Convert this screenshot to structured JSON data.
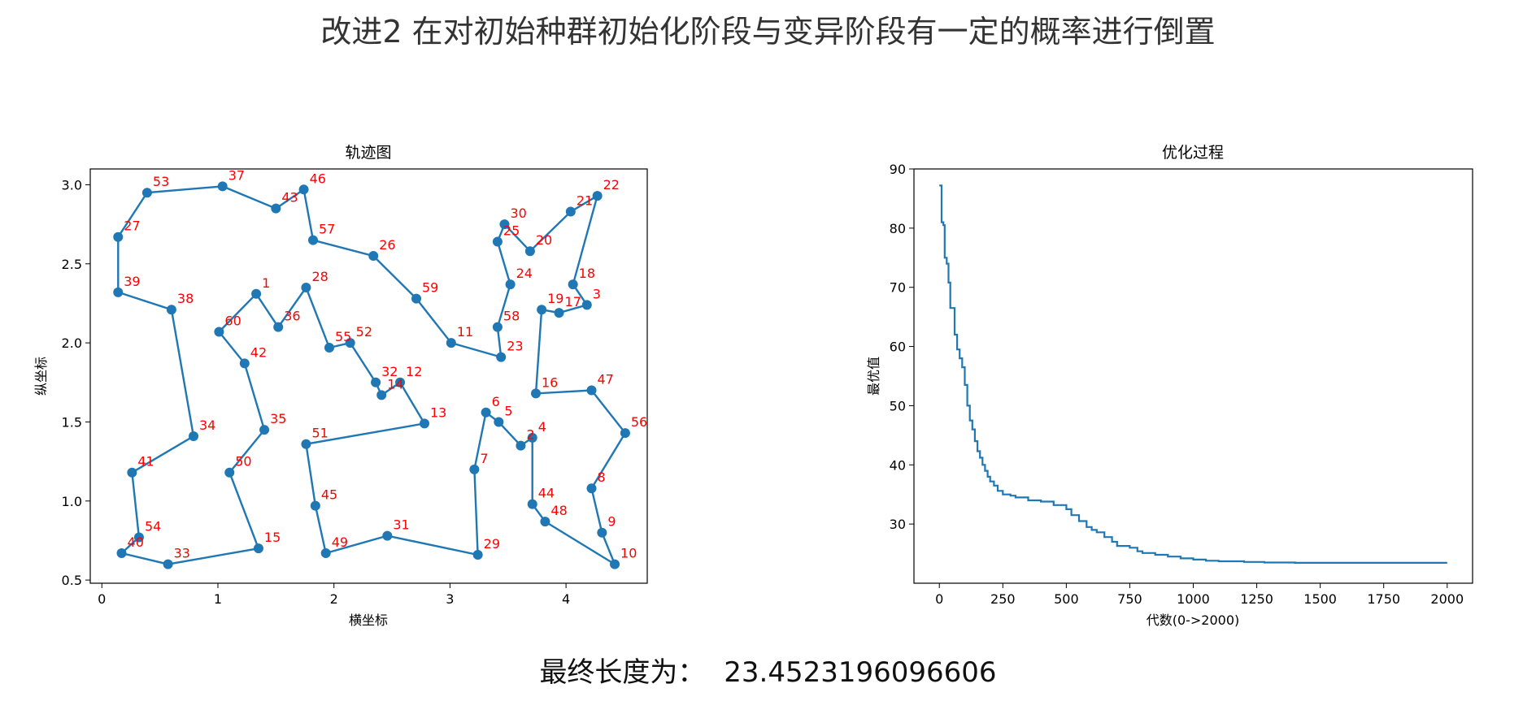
{
  "page": {
    "title": "改进2 在对初始种群初始化阶段与变异阶段有一定的概率进行倒置",
    "final_label": "最终长度为：",
    "final_value": "23.4523196096606"
  },
  "colors": {
    "line": "#1f77b4",
    "label": "#ff0000",
    "axes": "#000000"
  },
  "chart_data": [
    {
      "type": "line",
      "title": "轨迹图",
      "xlabel": "横坐标",
      "ylabel": "纵坐标",
      "xlim": [
        -0.1,
        4.7
      ],
      "ylim": [
        0.48,
        3.1
      ],
      "xticks": [
        0,
        1,
        2,
        3,
        4
      ],
      "yticks": [
        0.5,
        1.0,
        1.5,
        2.0,
        2.5,
        3.0
      ],
      "grid": false,
      "route": [
        {
          "n": "40",
          "x": 0.17,
          "y": 0.67
        },
        {
          "n": "54",
          "x": 0.32,
          "y": 0.77
        },
        {
          "n": "41",
          "x": 0.26,
          "y": 1.18
        },
        {
          "n": "34",
          "x": 0.79,
          "y": 1.41
        },
        {
          "n": "38",
          "x": 0.6,
          "y": 2.21
        },
        {
          "n": "39",
          "x": 0.14,
          "y": 2.32
        },
        {
          "n": "27",
          "x": 0.14,
          "y": 2.67
        },
        {
          "n": "53",
          "x": 0.39,
          "y": 2.95
        },
        {
          "n": "37",
          "x": 1.04,
          "y": 2.99
        },
        {
          "n": "43",
          "x": 1.5,
          "y": 2.85
        },
        {
          "n": "46",
          "x": 1.74,
          "y": 2.97
        },
        {
          "n": "57",
          "x": 1.82,
          "y": 2.65
        },
        {
          "n": "26",
          "x": 2.34,
          "y": 2.55
        },
        {
          "n": "59",
          "x": 2.71,
          "y": 2.28
        },
        {
          "n": "11",
          "x": 3.01,
          "y": 2.0
        },
        {
          "n": "23",
          "x": 3.44,
          "y": 1.91
        },
        {
          "n": "58",
          "x": 3.41,
          "y": 2.1
        },
        {
          "n": "24",
          "x": 3.52,
          "y": 2.37
        },
        {
          "n": "25",
          "x": 3.41,
          "y": 2.64
        },
        {
          "n": "30",
          "x": 3.47,
          "y": 2.75
        },
        {
          "n": "20",
          "x": 3.69,
          "y": 2.58
        },
        {
          "n": "21",
          "x": 4.04,
          "y": 2.83
        },
        {
          "n": "22",
          "x": 4.27,
          "y": 2.93
        },
        {
          "n": "18",
          "x": 4.06,
          "y": 2.37
        },
        {
          "n": "3",
          "x": 4.18,
          "y": 2.24
        },
        {
          "n": "17",
          "x": 3.94,
          "y": 2.19
        },
        {
          "n": "19",
          "x": 3.79,
          "y": 2.21
        },
        {
          "n": "16",
          "x": 3.74,
          "y": 1.68
        },
        {
          "n": "47",
          "x": 4.22,
          "y": 1.7
        },
        {
          "n": "56",
          "x": 4.51,
          "y": 1.43
        },
        {
          "n": "8",
          "x": 4.22,
          "y": 1.08
        },
        {
          "n": "9",
          "x": 4.31,
          "y": 0.8
        },
        {
          "n": "10",
          "x": 4.42,
          "y": 0.6
        },
        {
          "n": "48",
          "x": 3.82,
          "y": 0.87
        },
        {
          "n": "44",
          "x": 3.71,
          "y": 0.98
        },
        {
          "n": "4",
          "x": 3.71,
          "y": 1.4
        },
        {
          "n": "2",
          "x": 3.61,
          "y": 1.35
        },
        {
          "n": "5",
          "x": 3.42,
          "y": 1.5
        },
        {
          "n": "6",
          "x": 3.31,
          "y": 1.56
        },
        {
          "n": "7",
          "x": 3.21,
          "y": 1.2
        },
        {
          "n": "29",
          "x": 3.24,
          "y": 0.66
        },
        {
          "n": "31",
          "x": 2.46,
          "y": 0.78
        },
        {
          "n": "49",
          "x": 1.93,
          "y": 0.67
        },
        {
          "n": "45",
          "x": 1.84,
          "y": 0.97
        },
        {
          "n": "51",
          "x": 1.76,
          "y": 1.36
        },
        {
          "n": "13",
          "x": 2.78,
          "y": 1.49
        },
        {
          "n": "12",
          "x": 2.57,
          "y": 1.75
        },
        {
          "n": "14",
          "x": 2.41,
          "y": 1.67
        },
        {
          "n": "32",
          "x": 2.36,
          "y": 1.75
        },
        {
          "n": "52",
          "x": 2.14,
          "y": 2.0
        },
        {
          "n": "55",
          "x": 1.96,
          "y": 1.97
        },
        {
          "n": "28",
          "x": 1.76,
          "y": 2.35
        },
        {
          "n": "36",
          "x": 1.52,
          "y": 2.1
        },
        {
          "n": "1",
          "x": 1.33,
          "y": 2.31
        },
        {
          "n": "60",
          "x": 1.01,
          "y": 2.07
        },
        {
          "n": "42",
          "x": 1.23,
          "y": 1.87
        },
        {
          "n": "35",
          "x": 1.4,
          "y": 1.45
        },
        {
          "n": "50",
          "x": 1.1,
          "y": 1.18
        },
        {
          "n": "15",
          "x": 1.35,
          "y": 0.7
        },
        {
          "n": "33",
          "x": 0.57,
          "y": 0.6
        },
        {
          "n": "40",
          "x": 0.17,
          "y": 0.67
        }
      ]
    },
    {
      "type": "line",
      "title": "优化过程",
      "xlabel": "代数(0->2000)",
      "ylabel": "最优值",
      "xlim": [
        -100,
        2100
      ],
      "ylim": [
        20,
        90
      ],
      "xticks": [
        0,
        250,
        500,
        750,
        1000,
        1250,
        1500,
        1750,
        2000
      ],
      "yticks": [
        30,
        40,
        50,
        60,
        70,
        80,
        90
      ],
      "grid": false,
      "series": [
        {
          "x": [
            0,
            8,
            9,
            15,
            16,
            20,
            21,
            28,
            29,
            35,
            36,
            42,
            43,
            50,
            60,
            70,
            80,
            90,
            100,
            110,
            120,
            130,
            140,
            150,
            160,
            170,
            180,
            190,
            200,
            215,
            230,
            250,
            280,
            300,
            350,
            400,
            450,
            500,
            520,
            550,
            580,
            600,
            620,
            650,
            680,
            700,
            750,
            780,
            800,
            850,
            900,
            950,
            1000,
            1050,
            1100,
            1200,
            1280,
            1400,
            1600,
            1800,
            2000
          ],
          "y": [
            87.2,
            87.2,
            81,
            81,
            80.5,
            80.5,
            75,
            75,
            74,
            74,
            70.8,
            70.8,
            66.5,
            66.5,
            62,
            59.5,
            58,
            56.5,
            53.5,
            50,
            47.5,
            46,
            44,
            42.3,
            41.2,
            40,
            39,
            38,
            37.2,
            36.5,
            35.6,
            35,
            34.8,
            34.5,
            34,
            33.8,
            33.2,
            32.5,
            31.5,
            30.5,
            29.5,
            29,
            28.6,
            27.8,
            27,
            26.3,
            26,
            25.4,
            25.1,
            24.8,
            24.5,
            24.2,
            24,
            23.8,
            23.7,
            23.6,
            23.5,
            23.45,
            23.45,
            23.45,
            23.45
          ]
        }
      ]
    }
  ]
}
